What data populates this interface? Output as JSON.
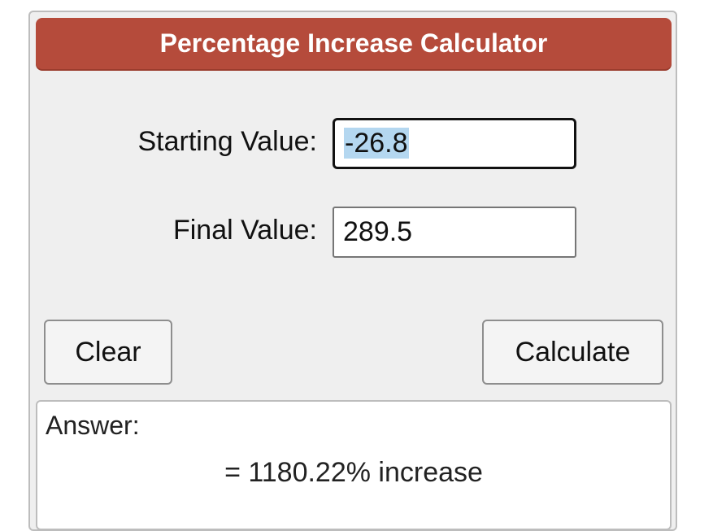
{
  "calculator": {
    "title": "Percentage Increase Calculator",
    "starting_value_label": "Starting Value:",
    "starting_value": "-26.8",
    "final_value_label": "Final Value:",
    "final_value": "289.5",
    "clear_label": "Clear",
    "calculate_label": "Calculate",
    "answer_label": "Answer:",
    "answer_result": "= 1180.22% increase"
  },
  "colors": {
    "title_bar": "#b54b3b",
    "panel_background": "#efefef",
    "selection_highlight": "#b4d7f0"
  }
}
